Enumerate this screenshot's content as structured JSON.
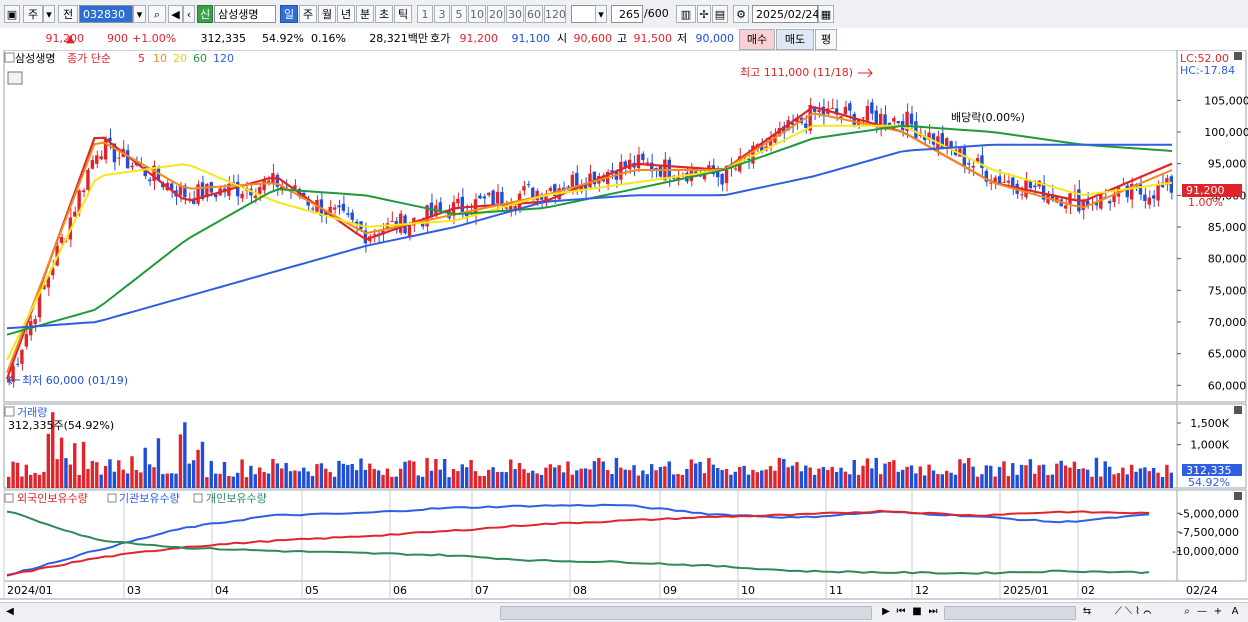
{
  "toolbar": {
    "mode": "주",
    "scope": "전",
    "code": "032830",
    "new_badge": "신",
    "name": "삼성생명",
    "periods": [
      "일",
      "주",
      "월",
      "년",
      "분",
      "초",
      "틱"
    ],
    "active_period": "일",
    "minute_units": [
      "1",
      "3",
      "5",
      "10",
      "20",
      "30",
      "60",
      "120"
    ],
    "count": "265",
    "max_count": "/600",
    "date": "2025/02/24"
  },
  "quote": {
    "price": "91,200",
    "change": "900",
    "change_pct": "+1.00%",
    "volume": "312,335",
    "vol_ratio": "54.92%",
    "turnover": "0.16%",
    "amount": "28,321백만",
    "bid_label": "호가",
    "ask": "91,200",
    "bid": "91,100",
    "open_label": "시",
    "open": "90,600",
    "high_label": "고",
    "high": "91,500",
    "low_label": "저",
    "low": "90,000",
    "buy_label": "매수",
    "sell_label": "매도",
    "eval_label": "평"
  },
  "price_panel": {
    "stock_label": "삼성생명",
    "ma_title": "종가 단순",
    "ma_periods": [
      "5",
      "10",
      "20",
      "60",
      "120"
    ],
    "lc_label": "LC:52.00",
    "hc_label": "HC:-17.84",
    "high_annotation": "최고 111,000 (11/18)",
    "low_annotation": "최저 60,000 (01/19)",
    "dividend_annotation": "배당락(0.00%)",
    "last_price_tag": "91,200",
    "last_pct_tag": "1.00%"
  },
  "volume_panel": {
    "title": "거래량",
    "info": "312,335주(54.92%)",
    "last_tag": "312,335",
    "last_pct_tag": "54.92%"
  },
  "holdings_panel": {
    "series_labels": [
      "외국인보유수량",
      "기관보유수량",
      "개인보유수량"
    ]
  },
  "x_axis_labels": [
    "2024/01",
    "03",
    "04",
    "05",
    "06",
    "07",
    "08",
    "09",
    "10",
    "11",
    "12",
    "2025/01",
    "02"
  ],
  "x_axis_right_label": "02/24",
  "colors": {
    "up": "#e0242b",
    "down": "#1f4fd8",
    "ma5": "#e0242b",
    "ma10": "#f08a1c",
    "ma20": "#f5e81a",
    "ma60": "#1f9a3a",
    "ma120": "#2f5fe0",
    "foreign": "#2f5fe0",
    "institution": "#e0242b",
    "individual": "#2e8b57"
  },
  "chart_data": [
    {
      "type": "candlestick",
      "title": "삼성생명",
      "x": [
        "2024/01",
        "03",
        "04",
        "05",
        "06",
        "07",
        "08",
        "09",
        "10",
        "11",
        "12",
        "2025/01",
        "02",
        "02/24"
      ],
      "close": [
        61000,
        98000,
        90000,
        92000,
        84000,
        88000,
        91000,
        95000,
        93000,
        103000,
        102000,
        93000,
        89000,
        91200
      ],
      "ma_series": [
        {
          "name": "5",
          "values": [
            61000,
            100000,
            89000,
            93000,
            83000,
            88000,
            89000,
            95000,
            94000,
            104000,
            100000,
            92000,
            89000,
            95000
          ]
        },
        {
          "name": "10",
          "values": [
            62000,
            99000,
            91000,
            92000,
            84000,
            87000,
            90000,
            94000,
            94000,
            103000,
            100000,
            92000,
            88000,
            94000
          ]
        },
        {
          "name": "20",
          "values": [
            64000,
            93000,
            95000,
            89000,
            85000,
            86000,
            90000,
            92000,
            94000,
            101000,
            101000,
            94000,
            90000,
            92000
          ]
        },
        {
          "name": "60",
          "values": [
            68000,
            72000,
            83000,
            91000,
            90000,
            87000,
            88000,
            91000,
            94000,
            99000,
            101000,
            100000,
            98000,
            97000
          ]
        },
        {
          "name": "120",
          "values": [
            69000,
            70000,
            74000,
            78000,
            82000,
            85000,
            89000,
            90000,
            90000,
            93000,
            97000,
            98000,
            98000,
            98000
          ]
        }
      ],
      "ylim": [
        58000,
        112000
      ],
      "yticks": [
        "105,000",
        "100,000",
        "95,000",
        "90,000",
        "85,000",
        "80,000",
        "75,000",
        "70,000",
        "65,000",
        "60,000"
      ],
      "annotations": [
        "최고 111,000 (11/18)",
        "최저 60,000 (01/19)",
        "배당락(0.00%)"
      ]
    },
    {
      "type": "bar",
      "title": "거래량",
      "yticks": [
        "1,500K",
        "1,000K"
      ],
      "last_value": 312335
    },
    {
      "type": "line",
      "series": [
        {
          "name": "외국인보유수량",
          "values": [
            -13300000,
            -10000000,
            -7000000,
            -5300000,
            -5000000,
            -4300000,
            -4000000,
            -3900000,
            -5100000,
            -5600000,
            -4800000,
            -5400000,
            -6200000,
            -5200000
          ]
        },
        {
          "name": "기관보유수량",
          "values": [
            -13300000,
            -11000000,
            -9500000,
            -8700000,
            -8100000,
            -7400000,
            -6500000,
            -6000000,
            -5500000,
            -5200000,
            -4700000,
            -5300000,
            -4800000,
            -5000000
          ]
        },
        {
          "name": "개인보유수량",
          "values": [
            -4700000,
            -8500000,
            -9600000,
            -10000000,
            -10300000,
            -10600000,
            -11300000,
            -11500000,
            -12000000,
            -12700000,
            -12900000,
            -13000000,
            -12700000,
            -12900000
          ]
        }
      ],
      "yticks": [
        "-5,000,000",
        "-7,500,000",
        "-10,000,000"
      ],
      "ylim": [
        -13500000,
        -3500000
      ]
    }
  ]
}
